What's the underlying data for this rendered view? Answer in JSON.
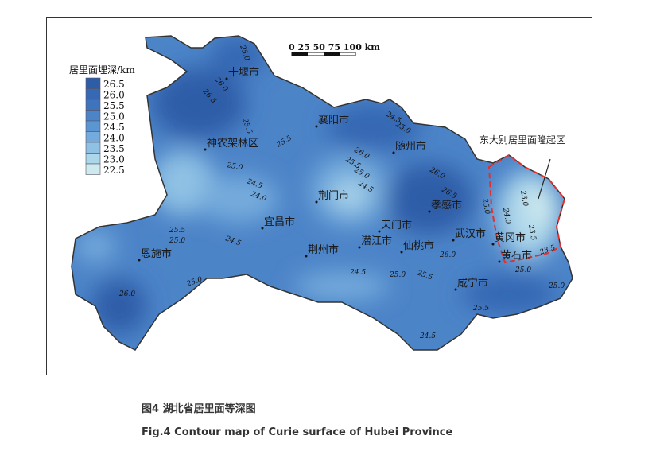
{
  "legend": {
    "title": "居里面埋深/km",
    "levels": [
      "26.5",
      "26.0",
      "25.5",
      "25.0",
      "24.5",
      "24.0",
      "23.5",
      "23.0",
      "22.5"
    ],
    "colors": [
      "#2e5da8",
      "#3668b3",
      "#3f74bd",
      "#4c84c8",
      "#5c96d2",
      "#74abdc",
      "#8fc1e4",
      "#acd6ea",
      "#cfeaee"
    ]
  },
  "scale_bar": {
    "label": "0  25  50  75 100 km"
  },
  "cities": [
    "十堰市",
    "襄阳市",
    "神农架林区",
    "随州市",
    "荆门市",
    "孝感市",
    "宜昌市",
    "天门市",
    "武汉市",
    "黄冈市",
    "恩施市",
    "荆州市",
    "潜江市",
    "仙桃市",
    "黄石市",
    "咸宁市"
  ],
  "contours": [
    "25.0",
    "26.0",
    "26.5",
    "25.5",
    "25.5",
    "25.0",
    "24.5",
    "24.0",
    "26.0",
    "25.5",
    "25.0",
    "24.5",
    "24.5",
    "25.0",
    "26.0",
    "26.5",
    "25.0",
    "24.0",
    "23.0",
    "23.5",
    "23.5",
    "25.0",
    "25.5",
    "25.0",
    "24.5",
    "26.0",
    "25.0",
    "24.5",
    "25.0",
    "25.5",
    "26.0",
    "25.5",
    "24.5",
    "25.0"
  ],
  "annotation": "东大别居里面隆起区",
  "caption": {
    "cn": "图4  湖北省居里面等深图",
    "en": "Fig.4 Contour map of Curie surface of Hubei Province"
  }
}
